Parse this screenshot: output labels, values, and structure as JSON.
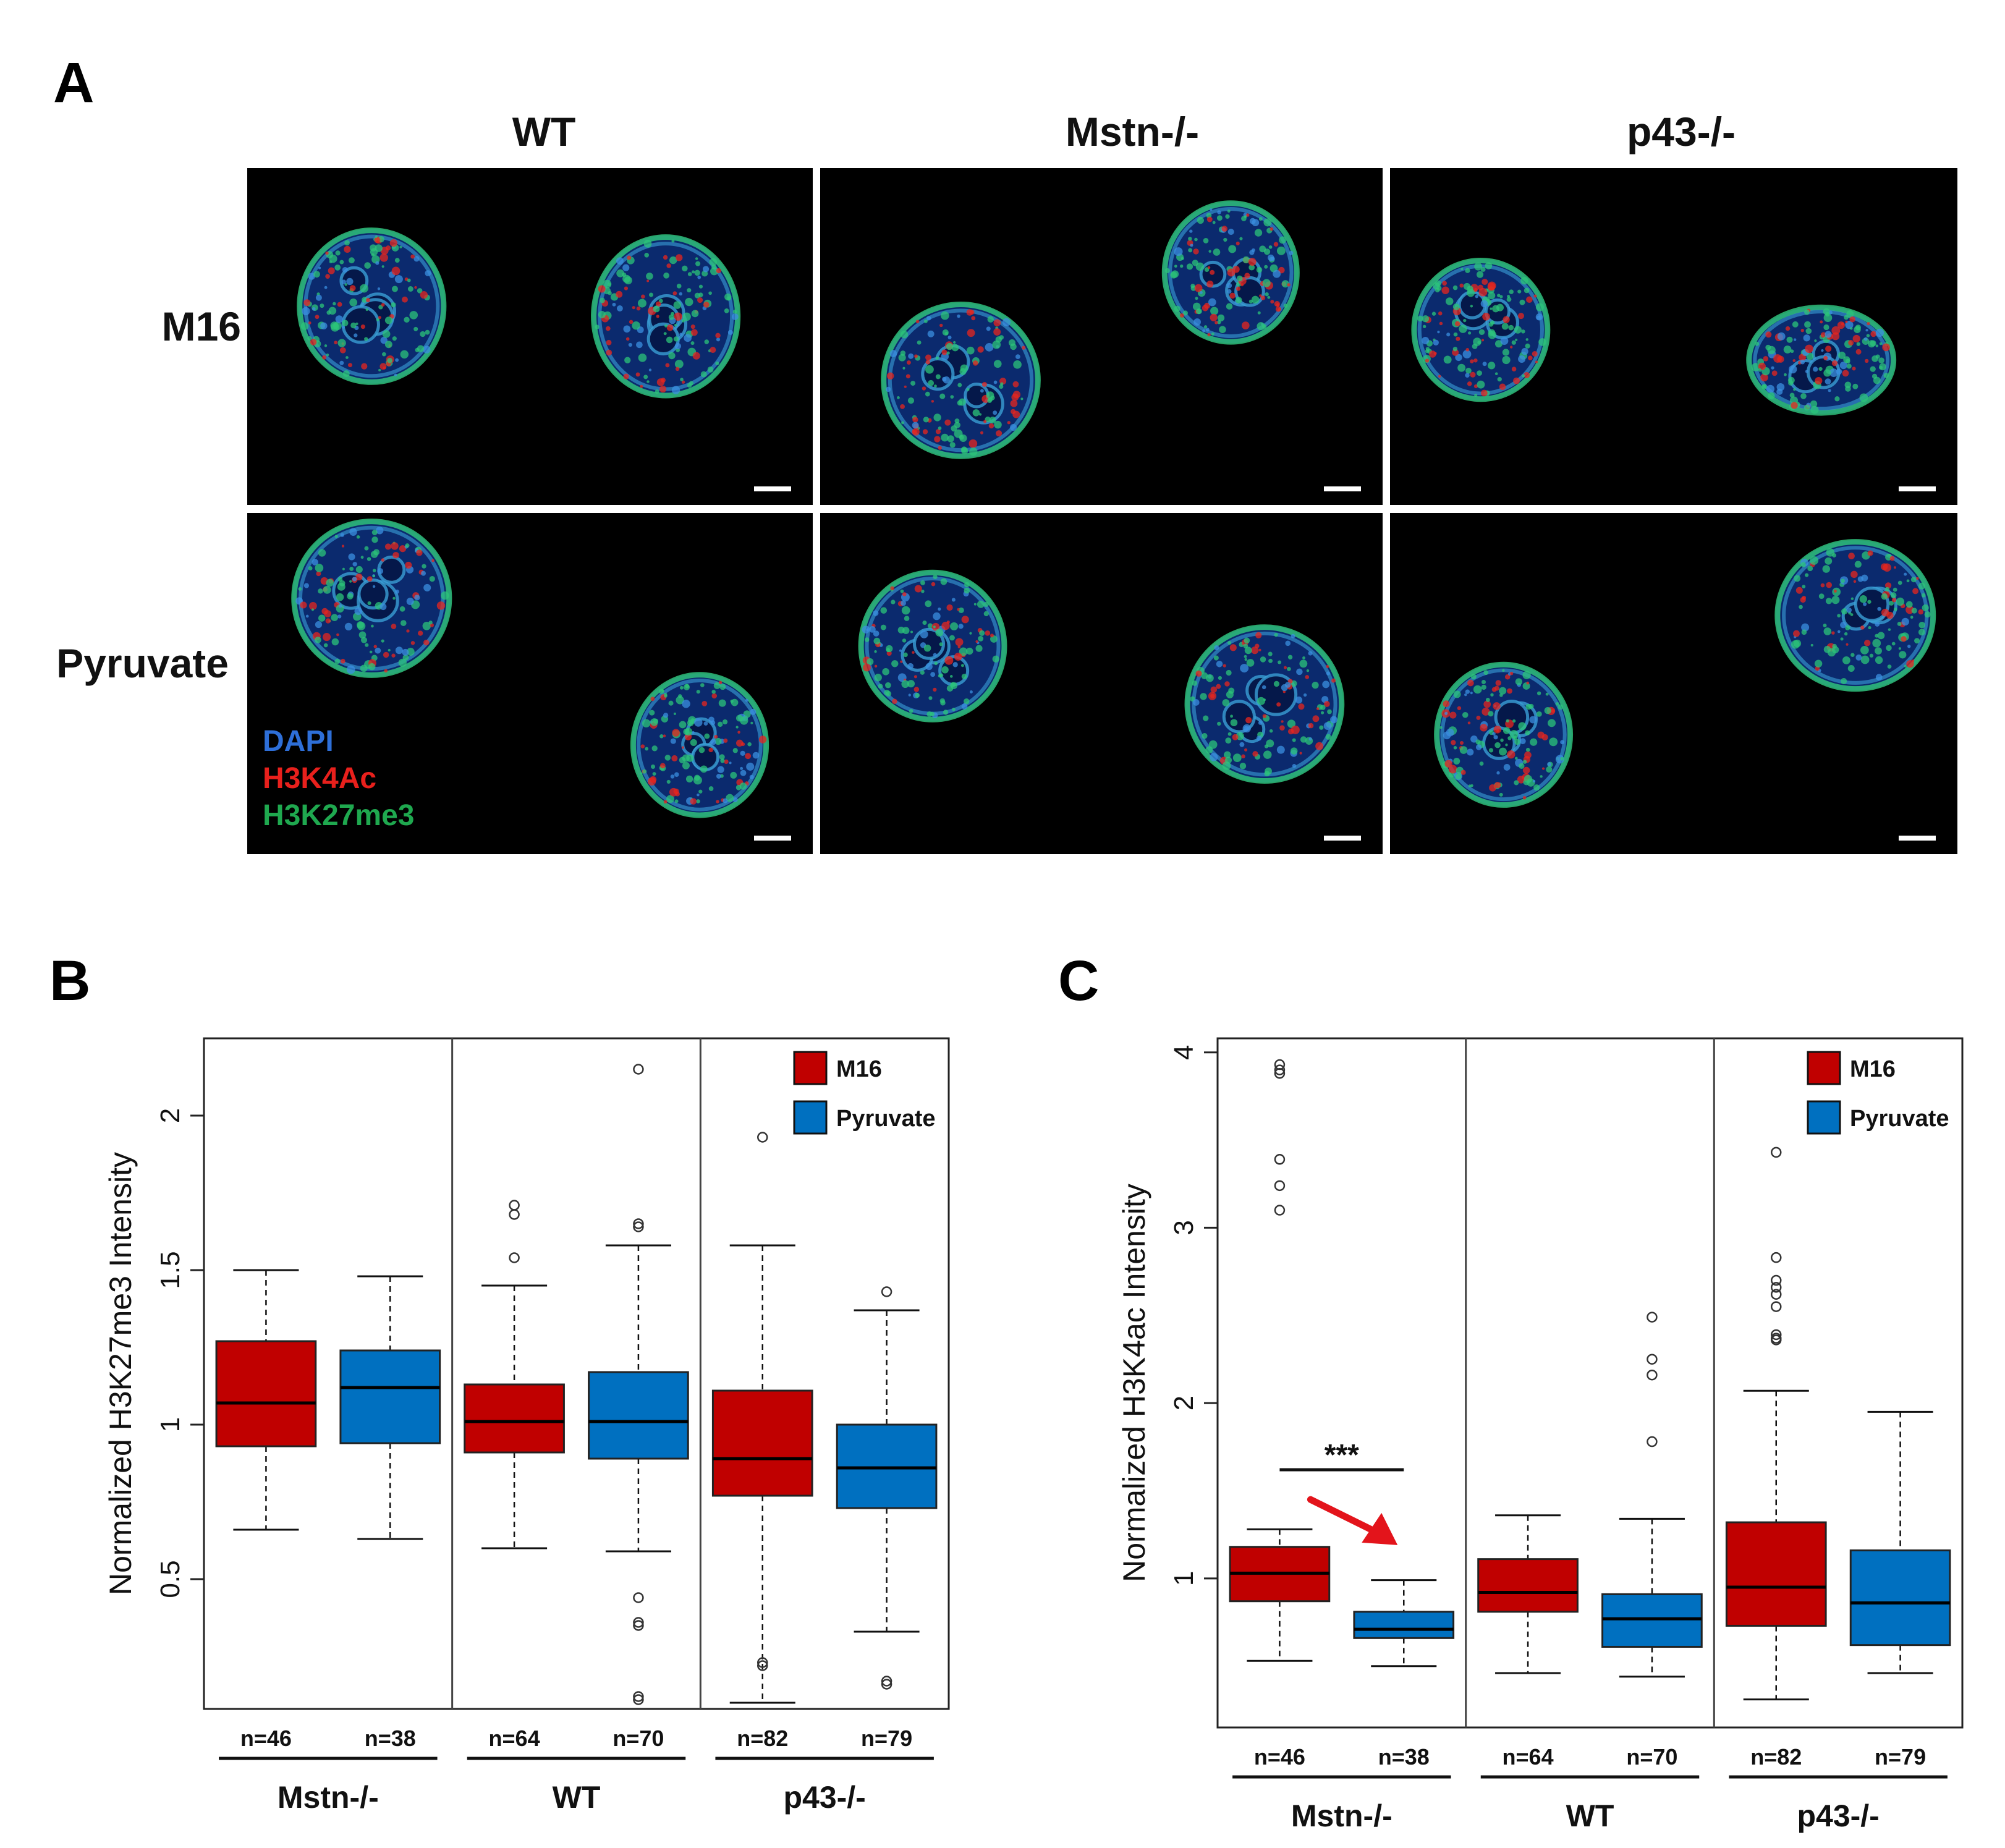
{
  "panel_a": {
    "letter": "A",
    "columns": [
      "WT",
      "Mstn-/-",
      "p43-/-"
    ],
    "rows": [
      "M16",
      "Pyruvate"
    ],
    "stain_legend": [
      {
        "label": "DAPI",
        "color": "#2e6fd8"
      },
      {
        "label": "H3K4Ac",
        "color": "#e8201c"
      },
      {
        "label": "H3K27me3",
        "color": "#1fa84f"
      }
    ]
  },
  "panel_b": {
    "letter": "B"
  },
  "panel_c": {
    "letter": "C",
    "significance": "***"
  },
  "colors": {
    "m16": "#c00000",
    "pyruvate": "#0070c0"
  },
  "chart_data": [
    {
      "type": "box",
      "panel": "B",
      "ylabel": "Normalized H3K27me3 Intensity",
      "ylim": [
        0.08,
        2.25
      ],
      "yticks": [
        "0.5",
        "1",
        "1.5",
        "2"
      ],
      "legend": [
        "M16",
        "Pyruvate"
      ],
      "legend_position": "top-right",
      "groups": [
        "Mstn-/-",
        "WT",
        "p43-/-"
      ],
      "series": [
        {
          "name": "M16",
          "group": "Mstn-/-",
          "n": "n=46",
          "min": 0.66,
          "q1": 0.93,
          "median": 1.07,
          "q3": 1.27,
          "max": 1.5,
          "outliers": []
        },
        {
          "name": "Pyruvate",
          "group": "Mstn-/-",
          "n": "n=38",
          "min": 0.63,
          "q1": 0.94,
          "median": 1.12,
          "q3": 1.24,
          "max": 1.48,
          "outliers": []
        },
        {
          "name": "M16",
          "group": "WT",
          "n": "n=64",
          "min": 0.6,
          "q1": 0.91,
          "median": 1.01,
          "q3": 1.13,
          "max": 1.45,
          "outliers": [
            1.54,
            1.68,
            1.71
          ]
        },
        {
          "name": "Pyruvate",
          "group": "WT",
          "n": "n=70",
          "min": 0.59,
          "q1": 0.89,
          "median": 1.01,
          "q3": 1.17,
          "max": 1.58,
          "outliers": [
            2.15,
            1.65,
            1.64,
            0.44,
            0.36,
            0.35,
            0.12,
            0.11
          ]
        },
        {
          "name": "M16",
          "group": "p43-/-",
          "n": "n=82",
          "min": 0.1,
          "q1": 0.77,
          "median": 0.89,
          "q3": 1.11,
          "max": 1.58,
          "outliers": [
            1.93,
            0.23,
            0.22
          ]
        },
        {
          "name": "Pyruvate",
          "group": "p43-/-",
          "n": "n=79",
          "min": 0.33,
          "q1": 0.73,
          "median": 0.86,
          "q3": 1.0,
          "max": 1.37,
          "outliers": [
            1.43,
            0.17,
            0.16
          ]
        }
      ]
    },
    {
      "type": "box",
      "panel": "C",
      "ylabel": "Normalized H3K4ac Intensity",
      "ylim": [
        0.15,
        4.08
      ],
      "yticks": [
        "1",
        "2",
        "3",
        "4"
      ],
      "legend": [
        "M16",
        "Pyruvate"
      ],
      "legend_position": "top-right",
      "groups": [
        "Mstn-/-",
        "WT",
        "p43-/-"
      ],
      "annotations": [
        {
          "text": "***",
          "between": [
            "Mstn-/- M16",
            "Mstn-/- Pyruvate"
          ]
        }
      ],
      "series": [
        {
          "name": "M16",
          "group": "Mstn-/-",
          "n": "n=46",
          "min": 0.53,
          "q1": 0.87,
          "median": 1.03,
          "q3": 1.18,
          "max": 1.28,
          "outliers": [
            3.93,
            3.9,
            3.88,
            3.39,
            3.24,
            3.1
          ]
        },
        {
          "name": "Pyruvate",
          "group": "Mstn-/-",
          "n": "n=38",
          "min": 0.5,
          "q1": 0.66,
          "median": 0.71,
          "q3": 0.81,
          "max": 0.99,
          "outliers": []
        },
        {
          "name": "M16",
          "group": "WT",
          "n": "n=64",
          "min": 0.46,
          "q1": 0.81,
          "median": 0.92,
          "q3": 1.11,
          "max": 1.36,
          "outliers": []
        },
        {
          "name": "Pyruvate",
          "group": "WT",
          "n": "n=70",
          "min": 0.44,
          "q1": 0.61,
          "median": 0.77,
          "q3": 0.91,
          "max": 1.34,
          "outliers": [
            2.49,
            2.25,
            2.16,
            1.78
          ]
        },
        {
          "name": "M16",
          "group": "p43-/-",
          "n": "n=82",
          "min": 0.31,
          "q1": 0.73,
          "median": 0.95,
          "q3": 1.32,
          "max": 2.07,
          "outliers": [
            3.43,
            2.83,
            2.7,
            2.66,
            2.62,
            2.55,
            2.39,
            2.37,
            2.36
          ]
        },
        {
          "name": "Pyruvate",
          "group": "p43-/-",
          "n": "n=79",
          "min": 0.46,
          "q1": 0.62,
          "median": 0.86,
          "q3": 1.16,
          "max": 1.95,
          "outliers": []
        }
      ]
    }
  ]
}
